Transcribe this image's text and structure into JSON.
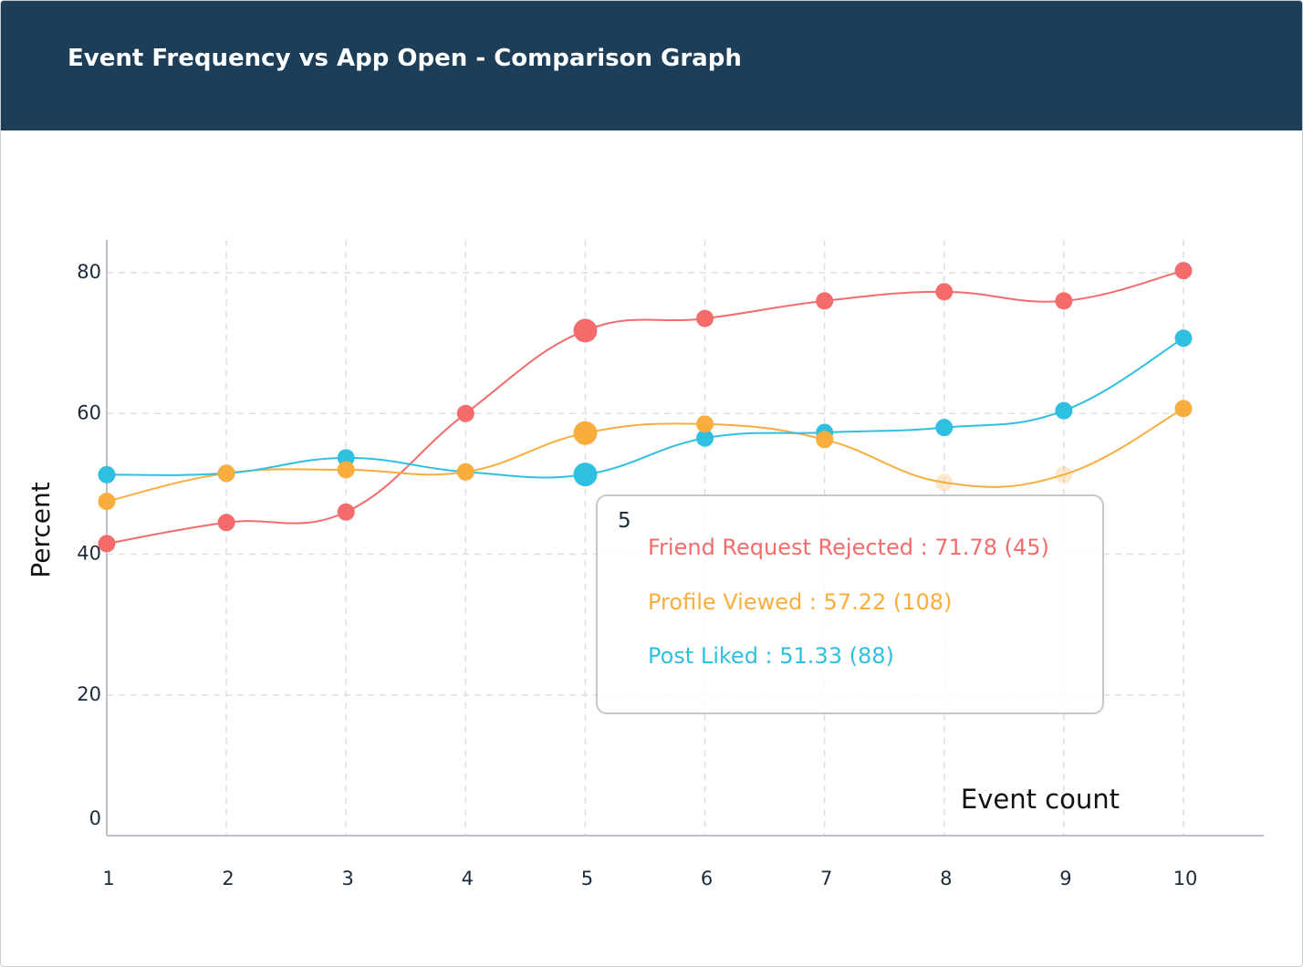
{
  "header": {
    "title": "Event Frequency vs App Open - Comparison Graph"
  },
  "colors": {
    "header_bg": "#1c3e58",
    "friend_request_rejected": "#f46b6b",
    "profile_viewed": "#f8ad3c",
    "post_liked": "#2fbfe0",
    "grid": "#dcdfe3",
    "axis": "#b9c0c8",
    "text": "#1b2b3a"
  },
  "chart_data": {
    "type": "line",
    "xlabel": "Event count",
    "ylabel": "Percent",
    "x": [
      1,
      2,
      3,
      4,
      5,
      6,
      7,
      8,
      9,
      10
    ],
    "y_ticks": [
      0,
      20,
      40,
      60,
      80
    ],
    "ylim": [
      0,
      84
    ],
    "grid": true,
    "series": [
      {
        "name": "Friend Request Rejected",
        "color": "#f46b6b",
        "values": [
          41.5,
          44.5,
          46,
          60,
          71.78,
          73.5,
          76,
          77.3,
          76,
          80.3
        ]
      },
      {
        "name": "Profile Viewed",
        "color": "#f8ad3c",
        "values": [
          47.5,
          51.5,
          52,
          51.7,
          57.22,
          58.5,
          56.3,
          50.2,
          51.3,
          60.7
        ]
      },
      {
        "name": "Post Liked",
        "color": "#2fbfe0",
        "values": [
          51.3,
          51.5,
          53.7,
          51.7,
          51.33,
          56.5,
          57.3,
          58,
          60.4,
          70.7
        ]
      }
    ],
    "highlight_index": 4,
    "faded_points": [
      {
        "series": 1,
        "index": 7
      },
      {
        "series": 1,
        "index": 8
      }
    ],
    "tooltip": {
      "x_label": "5",
      "rows": [
        {
          "text": "Friend Request Rejected : 71.78 (45)",
          "color": "#f46b6b"
        },
        {
          "text": "Profile Viewed : 57.22 (108)",
          "color": "#f8ad3c"
        },
        {
          "text": "Post Liked : 51.33 (88)",
          "color": "#2fbfe0"
        }
      ]
    }
  }
}
